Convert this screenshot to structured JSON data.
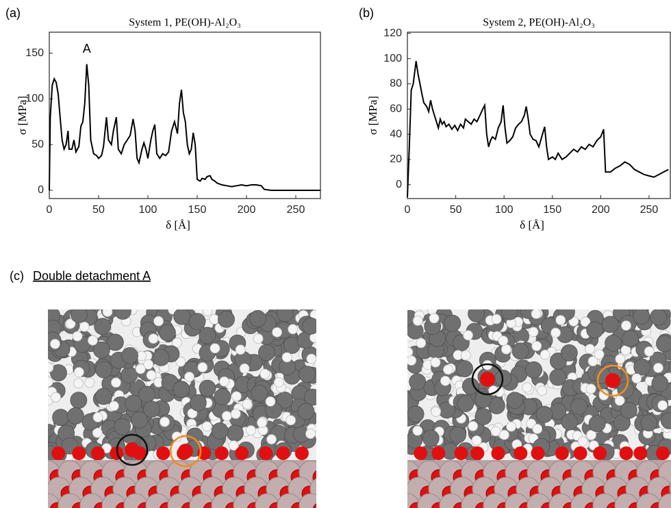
{
  "chart_data": [
    {
      "type": "line",
      "label": "(a)",
      "title": "System 1, PE(OH)-Al₂O₃",
      "x_label": "δ [Å]",
      "y_label": "σ [MPa]",
      "annotation": {
        "text": "A",
        "x": 38,
        "y": 148
      },
      "xlim": [
        0,
        275
      ],
      "xticks": [
        0,
        50,
        100,
        150,
        200,
        250
      ],
      "ylim": [
        -9,
        173
      ],
      "yticks": [
        0,
        50,
        100,
        150
      ],
      "color": "#000000",
      "x": [
        0,
        1,
        3,
        5,
        7,
        9,
        11,
        13,
        15,
        17,
        19,
        20,
        23,
        25,
        27,
        30,
        32,
        34,
        36,
        38,
        40,
        42,
        45,
        48,
        50,
        53,
        55,
        58,
        60,
        63,
        65,
        68,
        70,
        73,
        76,
        79,
        82,
        85,
        87,
        89,
        91,
        94,
        96,
        98,
        100,
        103,
        105,
        107,
        109,
        112,
        115,
        118,
        121,
        124,
        127,
        130,
        132,
        134,
        136,
        138,
        140,
        142,
        144,
        146,
        148,
        150,
        153,
        155,
        158,
        160,
        163,
        165,
        168,
        170,
        175,
        180,
        185,
        190,
        195,
        200,
        205,
        210,
        215,
        218,
        225,
        240,
        260,
        275
      ],
      "values": [
        0,
        80,
        115,
        122,
        118,
        105,
        80,
        55,
        45,
        50,
        65,
        45,
        45,
        55,
        42,
        48,
        70,
        75,
        95,
        138,
        115,
        55,
        40,
        38,
        35,
        38,
        48,
        80,
        55,
        50,
        65,
        80,
        45,
        40,
        50,
        55,
        60,
        78,
        65,
        35,
        30,
        45,
        52,
        45,
        35,
        55,
        65,
        72,
        40,
        35,
        40,
        38,
        42,
        65,
        75,
        62,
        95,
        110,
        85,
        75,
        50,
        40,
        45,
        63,
        50,
        12,
        10,
        13,
        12,
        15,
        16,
        12,
        10,
        8,
        6,
        5,
        4,
        5,
        6,
        5,
        6,
        6,
        5,
        1,
        0,
        0,
        0,
        0
      ]
    },
    {
      "type": "line",
      "label": "(b)",
      "title": "System 2, PE(OH)-Al₂O₃",
      "x_label": "δ [Å]",
      "y_label": "σ [MPa]",
      "xlim": [
        0,
        272
      ],
      "xticks": [
        0,
        50,
        100,
        150,
        200,
        250
      ],
      "ylim": [
        -11,
        121
      ],
      "yticks": [
        0,
        20,
        40,
        60,
        80,
        100,
        120
      ],
      "color": "#000000",
      "x": [
        0,
        2,
        4,
        6,
        8,
        9,
        11,
        13,
        15,
        17,
        20,
        22,
        24,
        26,
        28,
        30,
        32,
        34,
        36,
        38,
        40,
        43,
        46,
        49,
        52,
        55,
        58,
        60,
        63,
        66,
        69,
        72,
        75,
        78,
        80,
        82,
        84,
        86,
        88,
        91,
        94,
        97,
        99,
        101,
        103,
        106,
        109,
        112,
        115,
        118,
        121,
        123,
        125,
        127,
        130,
        133,
        136,
        139,
        142,
        144,
        146,
        150,
        153,
        156,
        160,
        164,
        168,
        172,
        176,
        180,
        184,
        188,
        192,
        196,
        200,
        203,
        205,
        210,
        215,
        220,
        225,
        230,
        235,
        240,
        245,
        250,
        255,
        260,
        265,
        270
      ],
      "values": [
        -10,
        30,
        75,
        80,
        92,
        98,
        88,
        80,
        72,
        65,
        62,
        58,
        67,
        60,
        55,
        50,
        45,
        52,
        48,
        50,
        46,
        48,
        44,
        47,
        43,
        48,
        45,
        52,
        50,
        48,
        52,
        50,
        55,
        60,
        63,
        40,
        30,
        35,
        38,
        36,
        45,
        50,
        63,
        45,
        33,
        35,
        38,
        45,
        48,
        50,
        55,
        62,
        52,
        40,
        36,
        35,
        30,
        38,
        46,
        30,
        20,
        22,
        20,
        25,
        20,
        22,
        25,
        28,
        26,
        30,
        28,
        32,
        30,
        35,
        38,
        44,
        10,
        10,
        13,
        15,
        18,
        16,
        12,
        10,
        8,
        7,
        6,
        8,
        10,
        12
      ]
    }
  ],
  "panel_c": {
    "label": "(c)",
    "title": "Double detachment A"
  }
}
